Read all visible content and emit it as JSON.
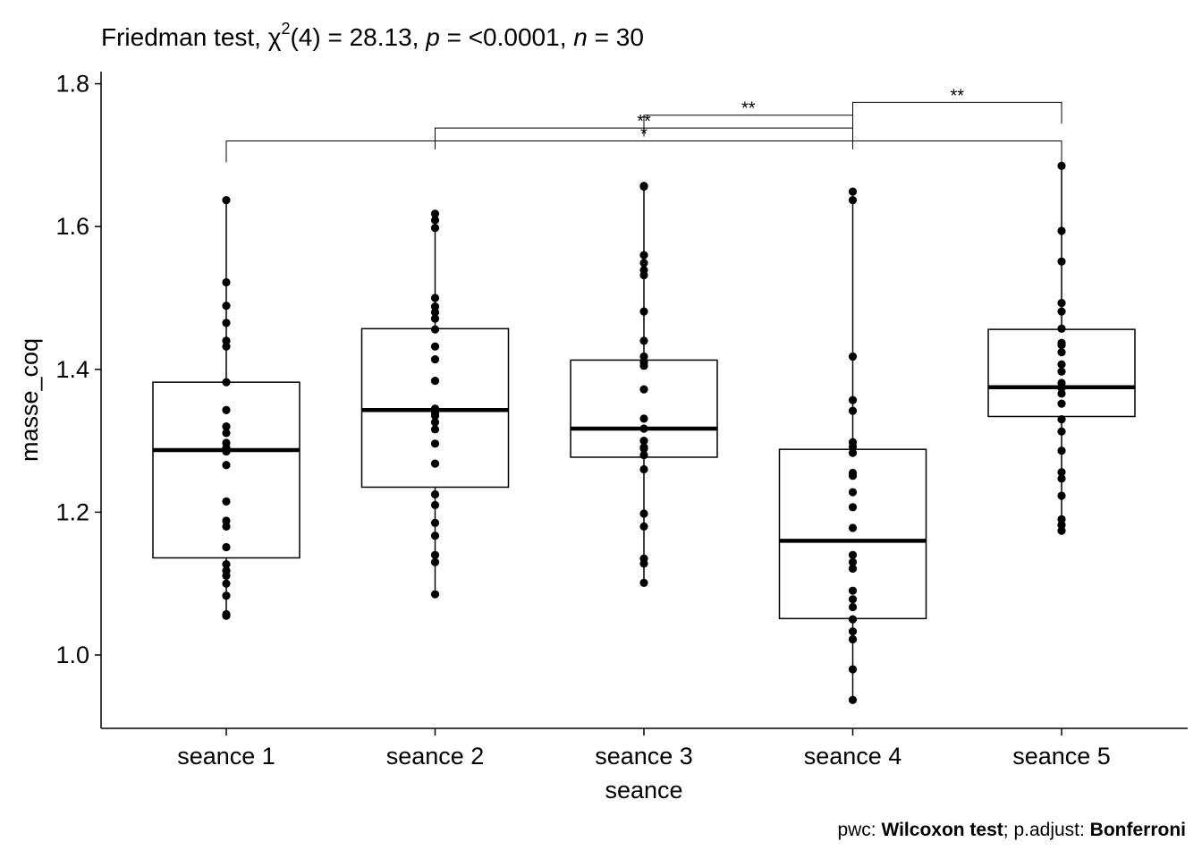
{
  "title": {
    "prefix": "Friedman test, ",
    "chi": "χ",
    "sup": "2",
    "df": "(4) = 28.13, ",
    "p_sym": "p",
    "p_val": " = <0.0001, ",
    "n_sym": "n",
    "n_val": " = 30"
  },
  "caption": {
    "pwc_label": "pwc: ",
    "pwc_method": "Wilcoxon test",
    "sep": "; p.adjust: ",
    "adjust_method": "Bonferroni"
  },
  "chart_data": {
    "type": "boxplot",
    "xlabel": "seance",
    "ylabel": "masse_coq",
    "ylim": [
      0.9,
      1.82
    ],
    "yticks": [
      1.0,
      1.2,
      1.4,
      1.6,
      1.8
    ],
    "ytick_labels": [
      "1.0",
      "1.2",
      "1.4",
      "1.6",
      "1.8"
    ],
    "categories": [
      "seance 1",
      "seance 2",
      "seance 3",
      "seance 4",
      "seance 5"
    ],
    "boxes": [
      {
        "q1": 1.136,
        "median": 1.287,
        "q3": 1.382,
        "whisker_low": 1.055,
        "whisker_high": 1.637
      },
      {
        "q1": 1.235,
        "median": 1.343,
        "q3": 1.457,
        "whisker_low": 1.085,
        "whisker_high": 1.618
      },
      {
        "q1": 1.277,
        "median": 1.317,
        "q3": 1.413,
        "whisker_low": 1.101,
        "whisker_high": 1.657
      },
      {
        "q1": 1.051,
        "median": 1.16,
        "q3": 1.288,
        "whisker_low": 0.937,
        "whisker_high": 1.649
      },
      {
        "q1": 1.334,
        "median": 1.375,
        "q3": 1.456,
        "whisker_low": 1.174,
        "whisker_high": 1.685
      }
    ],
    "points": [
      [
        1.637,
        1.522,
        1.489,
        1.465,
        1.44,
        1.432,
        1.382,
        1.343,
        1.32,
        1.311,
        1.297,
        1.29,
        1.285,
        1.266,
        1.215,
        1.188,
        1.18,
        1.151,
        1.127,
        1.118,
        1.111,
        1.1,
        1.083,
        1.057,
        1.055
      ],
      [
        1.618,
        1.609,
        1.598,
        1.5,
        1.488,
        1.48,
        1.471,
        1.456,
        1.432,
        1.414,
        1.384,
        1.345,
        1.339,
        1.335,
        1.326,
        1.316,
        1.296,
        1.268,
        1.225,
        1.21,
        1.185,
        1.167,
        1.14,
        1.13,
        1.085
      ],
      [
        1.657,
        1.656,
        1.56,
        1.549,
        1.539,
        1.532,
        1.481,
        1.44,
        1.418,
        1.41,
        1.405,
        1.372,
        1.331,
        1.317,
        1.3,
        1.291,
        1.289,
        1.28,
        1.26,
        1.198,
        1.18,
        1.135,
        1.128,
        1.101
      ],
      [
        1.649,
        1.637,
        1.418,
        1.357,
        1.342,
        1.298,
        1.292,
        1.283,
        1.255,
        1.251,
        1.228,
        1.207,
        1.178,
        1.14,
        1.13,
        1.121,
        1.09,
        1.078,
        1.067,
        1.05,
        1.033,
        1.022,
        0.98,
        0.937
      ],
      [
        1.685,
        1.594,
        1.551,
        1.493,
        1.481,
        1.457,
        1.437,
        1.434,
        1.424,
        1.407,
        1.397,
        1.381,
        1.374,
        1.366,
        1.352,
        1.33,
        1.313,
        1.286,
        1.256,
        1.247,
        1.223,
        1.19,
        1.182,
        1.174
      ]
    ],
    "comparisons": [
      {
        "groups": [
          "seance 1",
          "seance 5"
        ],
        "label": "*"
      },
      {
        "groups": [
          "seance 2",
          "seance 4"
        ],
        "label": "**"
      },
      {
        "groups": [
          "seance 3",
          "seance 4"
        ],
        "label": "**"
      },
      {
        "groups": [
          "seance 4",
          "seance 5"
        ],
        "label": "**"
      }
    ]
  }
}
